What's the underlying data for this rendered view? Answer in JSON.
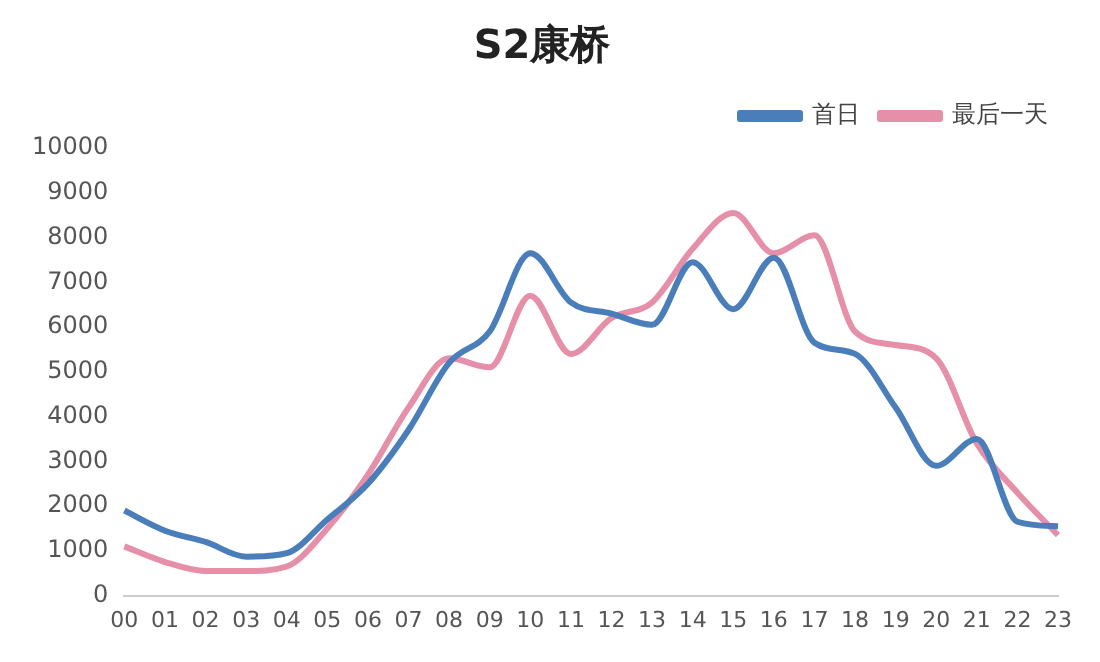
{
  "chart_data": {
    "type": "line",
    "title": "S2康桥",
    "categories": [
      "00",
      "01",
      "02",
      "03",
      "04",
      "05",
      "06",
      "07",
      "08",
      "09",
      "10",
      "11",
      "12",
      "13",
      "14",
      "15",
      "16",
      "17",
      "18",
      "19",
      "20",
      "21",
      "22",
      "23"
    ],
    "series": [
      {
        "name": "首日",
        "color": "#4a7ebb",
        "values": [
          1900,
          1450,
          1200,
          870,
          950,
          1700,
          2500,
          3700,
          5200,
          5900,
          7650,
          6550,
          6300,
          6050,
          7450,
          6400,
          7550,
          5650,
          5400,
          4200,
          2900,
          3500,
          1650,
          1550
        ]
      },
      {
        "name": "最后一天",
        "color": "#e58fa8",
        "values": [
          1100,
          750,
          550,
          550,
          650,
          1500,
          2700,
          4200,
          5300,
          5100,
          6700,
          5400,
          6200,
          6550,
          7750,
          8550,
          7650,
          8050,
          5900,
          5600,
          5300,
          3400,
          2300,
          1350
        ]
      }
    ],
    "ylim": [
      0,
      10000
    ],
    "yticks": [
      0,
      1000,
      2000,
      3000,
      4000,
      5000,
      6000,
      7000,
      8000,
      9000,
      10000
    ],
    "grid": false,
    "legend": "top right",
    "marker": "none",
    "line_style": "solid"
  }
}
